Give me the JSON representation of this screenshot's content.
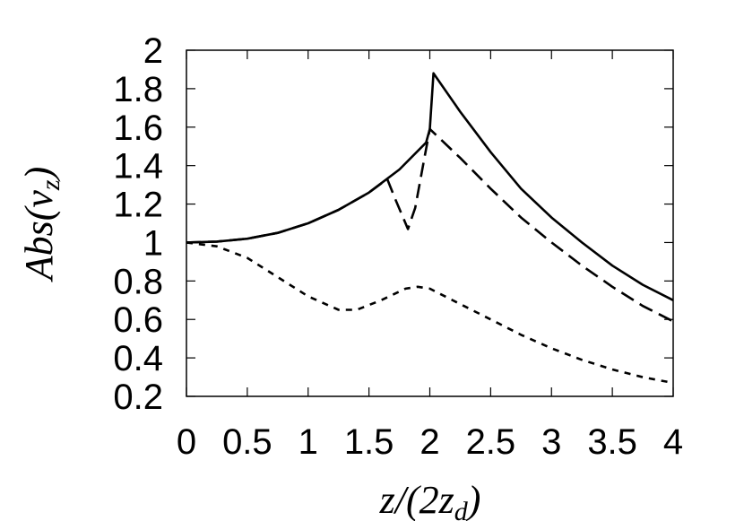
{
  "chart_data": {
    "type": "line",
    "title": "",
    "xlabel": "z/(2z_d)",
    "ylabel": "Abs(v_z)",
    "xlim": [
      0,
      4
    ],
    "ylim": [
      0.2,
      2
    ],
    "x_ticks": [
      "0",
      "0.5",
      "1",
      "1.5",
      "2",
      "2.5",
      "3",
      "3.5",
      "4"
    ],
    "y_ticks": [
      "0.2",
      "0.4",
      "0.6",
      "0.8",
      "1",
      "1.2",
      "1.4",
      "1.6",
      "1.8",
      "2"
    ],
    "grid": false,
    "legend": "none",
    "series": [
      {
        "style": "solid",
        "points": [
          [
            0,
            1.0
          ],
          [
            0.25,
            1.005
          ],
          [
            0.5,
            1.02
          ],
          [
            0.75,
            1.05
          ],
          [
            1.0,
            1.1
          ],
          [
            1.25,
            1.17
          ],
          [
            1.5,
            1.26
          ],
          [
            1.75,
            1.38
          ],
          [
            1.97,
            1.52
          ],
          [
            2.0,
            1.59
          ],
          [
            2.03,
            1.88
          ],
          [
            2.25,
            1.68
          ],
          [
            2.5,
            1.47
          ],
          [
            2.75,
            1.28
          ],
          [
            3.0,
            1.13
          ],
          [
            3.25,
            1.0
          ],
          [
            3.5,
            0.88
          ],
          [
            3.75,
            0.78
          ],
          [
            4.0,
            0.7
          ]
        ]
      },
      {
        "style": "dashed",
        "points": [
          [
            0,
            1.0
          ],
          [
            0.25,
            1.005
          ],
          [
            0.5,
            1.02
          ],
          [
            0.75,
            1.05
          ],
          [
            1.0,
            1.1
          ],
          [
            1.25,
            1.17
          ],
          [
            1.5,
            1.26
          ],
          [
            1.65,
            1.33
          ],
          [
            1.72,
            1.22
          ],
          [
            1.82,
            1.07
          ],
          [
            1.88,
            1.18
          ],
          [
            1.95,
            1.42
          ],
          [
            2.0,
            1.59
          ],
          [
            2.25,
            1.44
          ],
          [
            2.5,
            1.28
          ],
          [
            2.75,
            1.13
          ],
          [
            3.0,
            1.0
          ],
          [
            3.25,
            0.88
          ],
          [
            3.5,
            0.77
          ],
          [
            3.75,
            0.67
          ],
          [
            4.0,
            0.59
          ]
        ]
      },
      {
        "style": "dotted",
        "points": [
          [
            0,
            1.0
          ],
          [
            0.25,
            0.98
          ],
          [
            0.5,
            0.92
          ],
          [
            0.75,
            0.82
          ],
          [
            1.0,
            0.72
          ],
          [
            1.25,
            0.65
          ],
          [
            1.4,
            0.65
          ],
          [
            1.6,
            0.7
          ],
          [
            1.8,
            0.76
          ],
          [
            1.9,
            0.77
          ],
          [
            2.0,
            0.76
          ],
          [
            2.25,
            0.68
          ],
          [
            2.5,
            0.6
          ],
          [
            2.75,
            0.52
          ],
          [
            3.0,
            0.45
          ],
          [
            3.25,
            0.39
          ],
          [
            3.5,
            0.34
          ],
          [
            3.75,
            0.3
          ],
          [
            4.0,
            0.27
          ]
        ]
      }
    ]
  }
}
